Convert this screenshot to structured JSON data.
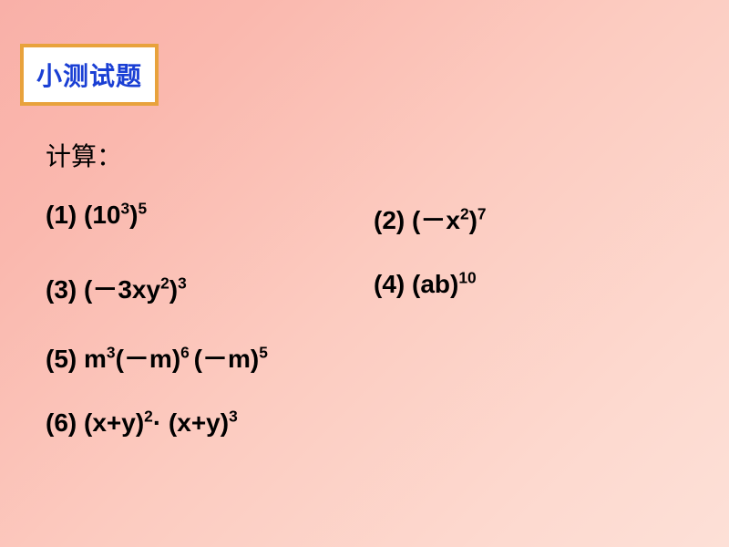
{
  "title_box": {
    "text": "小测试题",
    "border_color": "#e8a23c",
    "bg_color": "#ffffff",
    "text_color": "#1a3fd4",
    "font_size_pt": 21
  },
  "instruction": {
    "text": "计算：",
    "font_size_pt": 21,
    "color": "#000000"
  },
  "background": {
    "gradient_start": "#f9b0a8",
    "gradient_end": "#fde0d7"
  },
  "problems": {
    "font_size_pt": 21,
    "font_weight": "bold",
    "color": "#000000",
    "layout": "two-column-then-single",
    "items": [
      {
        "label": "(1)",
        "expr_html": "(10<sup>3</sup>)<sup>5</sup>",
        "expr_plain": "(10^3)^5"
      },
      {
        "label": "(2)",
        "expr_html": "(<span class=\"minus\">－</span>x<sup>2</sup>)<sup>7</sup>",
        "expr_plain": "(−x^2)^7"
      },
      {
        "label": "(3)",
        "expr_html": "(<span class=\"minus\">－</span>3xy<sup>2</sup>)<sup>3</sup>",
        "expr_plain": "(−3xy^2)^3"
      },
      {
        "label": "(4)",
        "expr_html": "(ab)<sup>10</sup>",
        "expr_plain": "(ab)^10"
      },
      {
        "label": "(5)",
        "expr_html": "m<sup>3</sup>(<span class=\"minus\">－</span>m)<sup>6 </sup>(<span class=\"minus\">－</span>m)<sup>5</sup>",
        "expr_plain": "m^3(−m)^6(−m)^5"
      },
      {
        "label": "(6)",
        "expr_html": "(x+y)<sup>2</sup>· (x+y)<sup>3</sup>",
        "expr_plain": "(x+y)^2·(x+y)^3"
      }
    ]
  }
}
